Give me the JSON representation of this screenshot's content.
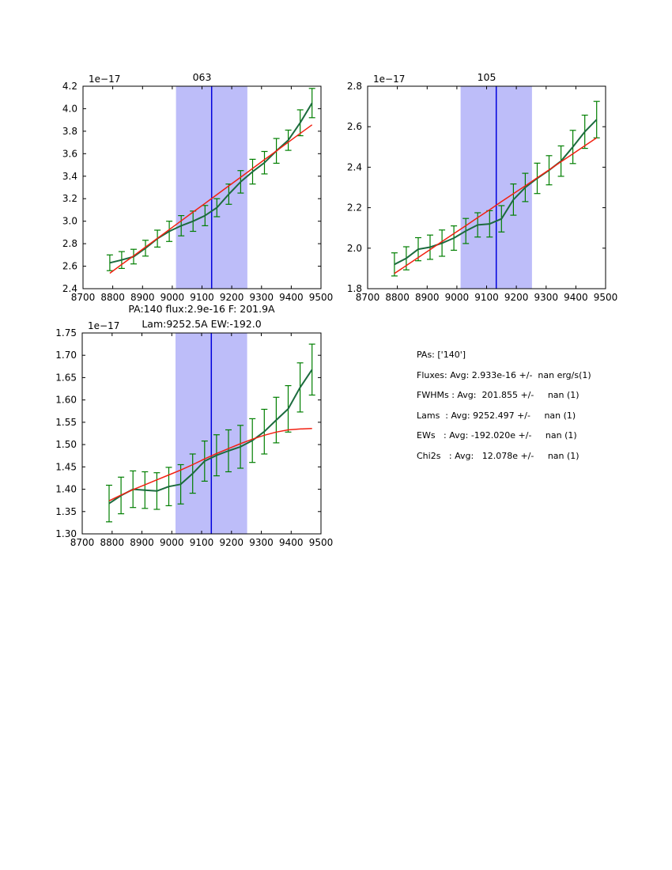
{
  "page": {
    "background": "#ffffff"
  },
  "colors": {
    "data_line": "#1c6b3e",
    "error_bar": "#007f00",
    "fit_line": "#f22011",
    "band_fill": "#bdbdf9",
    "center_line": "#0000dd",
    "axes": "#000000",
    "text": "#000000"
  },
  "stats": {
    "lines": [
      "PAs: ['140']",
      "Fluxes: Avg: 2.933e-16 +/-  nan erg/s(1)",
      "FWHMs : Avg:  201.855 +/-     nan (1)",
      "Lams  : Avg: 9252.497 +/-     nan (1)",
      "EWs   : Avg: -192.020e +/-     nan (1)",
      "Chi2s   : Avg:   12.078e +/-     nan (1)"
    ]
  },
  "chart_data": [
    {
      "type": "line",
      "title_lines": [
        "063"
      ],
      "offset_label": "1e−17",
      "xlabel": "",
      "ylabel": "",
      "xlim": [
        8700,
        9500
      ],
      "ylim": [
        2.4,
        4.2
      ],
      "xticks": [
        8700,
        8800,
        8900,
        9000,
        9100,
        9200,
        9300,
        9400,
        9500
      ],
      "xtick_labels": [
        "8700",
        "8800",
        "8900",
        "9000",
        "9100",
        "9200",
        "9300",
        "9400",
        "9500"
      ],
      "yticks": [
        2.4,
        2.6,
        2.8,
        3.0,
        3.2,
        3.4,
        3.6,
        3.8,
        4.0,
        4.2
      ],
      "ytick_labels": [
        "2.4",
        "2.6",
        "2.8",
        "3.0",
        "3.2",
        "3.4",
        "3.6",
        "3.8",
        "4.0",
        "4.2"
      ],
      "band": [
        9012.5,
        9252.5
      ],
      "center_line_x": 9132.5,
      "x": [
        8790,
        8830,
        8870,
        8910,
        8950,
        8990,
        9030,
        9070,
        9110,
        9150,
        9190,
        9230,
        9270,
        9310,
        9350,
        9390,
        9430,
        9470
      ],
      "series": [
        {
          "name": "spectrum-data",
          "color_key": "data_line",
          "values": [
            2.63,
            2.655,
            2.685,
            2.76,
            2.845,
            2.91,
            2.96,
            3.0,
            3.05,
            3.12,
            3.24,
            3.35,
            3.44,
            3.52,
            3.625,
            3.72,
            3.875,
            4.05
          ],
          "yerr": [
            0.07,
            0.075,
            0.065,
            0.07,
            0.075,
            0.09,
            0.09,
            0.09,
            0.09,
            0.08,
            0.09,
            0.1,
            0.11,
            0.1,
            0.11,
            0.09,
            0.115,
            0.13
          ]
        },
        {
          "name": "fit",
          "color_key": "fit_line",
          "values": [
            2.537,
            2.615,
            2.692,
            2.77,
            2.848,
            2.925,
            3.003,
            3.081,
            3.158,
            3.236,
            3.314,
            3.391,
            3.469,
            3.547,
            3.624,
            3.702,
            3.78,
            3.857
          ]
        }
      ]
    },
    {
      "type": "line",
      "title_lines": [
        "105"
      ],
      "offset_label": "1e−17",
      "xlabel": "",
      "ylabel": "",
      "xlim": [
        8700,
        9500
      ],
      "ylim": [
        1.8,
        2.8
      ],
      "xticks": [
        8700,
        8800,
        8900,
        9000,
        9100,
        9200,
        9300,
        9400,
        9500
      ],
      "xtick_labels": [
        "8700",
        "8800",
        "8900",
        "9000",
        "9100",
        "9200",
        "9300",
        "9400",
        "9500"
      ],
      "yticks": [
        1.8,
        2.0,
        2.2,
        2.4,
        2.6,
        2.8
      ],
      "ytick_labels": [
        "1.8",
        "2.0",
        "2.2",
        "2.4",
        "2.6",
        "2.8"
      ],
      "band": [
        9012.5,
        9252.5
      ],
      "center_line_x": 9132.5,
      "x": [
        8790,
        8830,
        8870,
        8910,
        8950,
        8990,
        9030,
        9070,
        9110,
        9150,
        9190,
        9230,
        9270,
        9310,
        9350,
        9390,
        9430,
        9470
      ],
      "series": [
        {
          "name": "spectrum-data",
          "color_key": "data_line",
          "values": [
            1.92,
            1.95,
            1.995,
            2.005,
            2.025,
            2.05,
            2.085,
            2.115,
            2.12,
            2.145,
            2.24,
            2.3,
            2.345,
            2.385,
            2.43,
            2.5,
            2.575,
            2.635
          ],
          "yerr": [
            0.057,
            0.057,
            0.057,
            0.06,
            0.065,
            0.06,
            0.062,
            0.06,
            0.065,
            0.065,
            0.077,
            0.07,
            0.075,
            0.072,
            0.075,
            0.082,
            0.082,
            0.09
          ]
        },
        {
          "name": "fit",
          "color_key": "fit_line",
          "values": [
            1.875,
            1.914,
            1.954,
            1.993,
            2.033,
            2.072,
            2.111,
            2.151,
            2.19,
            2.23,
            2.269,
            2.308,
            2.348,
            2.387,
            2.427,
            2.466,
            2.506,
            2.545
          ]
        }
      ]
    },
    {
      "type": "line",
      "title_lines": [
        "PA:140 flux:2.9e-16 F: 201.9A",
        "Lam:9252.5A EW:-192.0"
      ],
      "offset_label": "1e−17",
      "xlabel": "",
      "ylabel": "",
      "xlim": [
        8700,
        9500
      ],
      "ylim": [
        1.3,
        1.75
      ],
      "xticks": [
        8700,
        8800,
        8900,
        9000,
        9100,
        9200,
        9300,
        9400,
        9500
      ],
      "xtick_labels": [
        "8700",
        "8800",
        "8900",
        "9000",
        "9100",
        "9200",
        "9300",
        "9400",
        "9500"
      ],
      "yticks": [
        1.3,
        1.35,
        1.4,
        1.45,
        1.5,
        1.55,
        1.6,
        1.65,
        1.7,
        1.75
      ],
      "ytick_labels": [
        "1.30",
        "1.35",
        "1.40",
        "1.45",
        "1.50",
        "1.55",
        "1.60",
        "1.65",
        "1.70",
        "1.75"
      ],
      "band": [
        9012.5,
        9252.5
      ],
      "center_line_x": 9132.5,
      "x": [
        8790,
        8830,
        8870,
        8910,
        8950,
        8990,
        9030,
        9070,
        9110,
        9150,
        9190,
        9230,
        9270,
        9310,
        9350,
        9390,
        9430,
        9470
      ],
      "series": [
        {
          "name": "spectrum-data",
          "color_key": "data_line",
          "values": [
            1.368,
            1.386,
            1.4,
            1.398,
            1.396,
            1.406,
            1.411,
            1.435,
            1.463,
            1.476,
            1.486,
            1.495,
            1.509,
            1.529,
            1.555,
            1.58,
            1.628,
            1.668
          ],
          "yerr": [
            0.041,
            0.041,
            0.041,
            0.041,
            0.041,
            0.043,
            0.044,
            0.044,
            0.045,
            0.046,
            0.047,
            0.048,
            0.049,
            0.05,
            0.051,
            0.052,
            0.055,
            0.057
          ]
        },
        {
          "name": "fit",
          "color_key": "fit_line",
          "values": [
            1.374,
            1.387,
            1.399,
            1.41,
            1.421,
            1.432,
            1.443,
            1.455,
            1.468,
            1.48,
            1.491,
            1.502,
            1.512,
            1.521,
            1.528,
            1.533,
            1.535,
            1.536
          ]
        }
      ]
    }
  ]
}
